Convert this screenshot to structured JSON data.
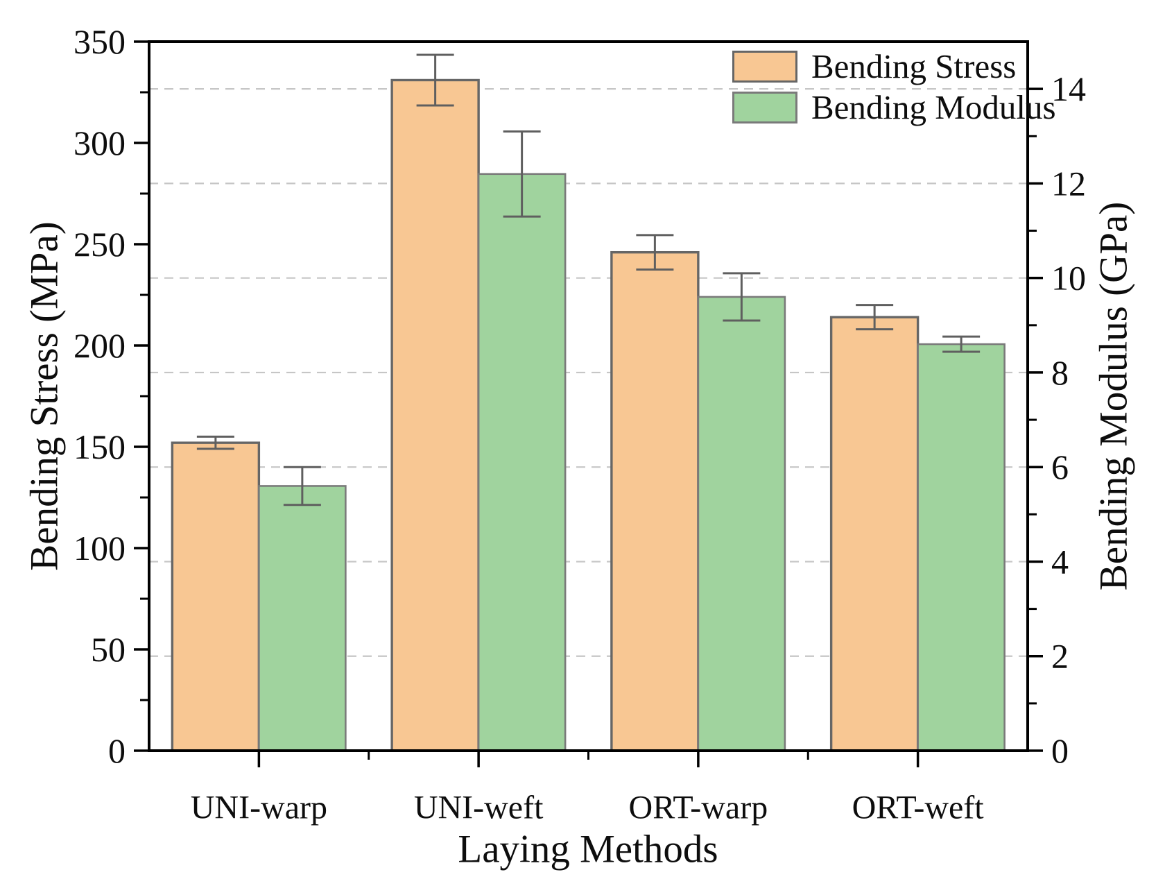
{
  "chart_data": {
    "type": "bar",
    "title": "",
    "categories": [
      "UNI-warp",
      "UNI-weft",
      "ORT-warp",
      "ORT-weft"
    ],
    "series": [
      {
        "name": "Bending Stress",
        "axis": "left",
        "unit": "MPa",
        "fill_color": "#F8C793",
        "edge_color": "#666666",
        "values": [
          152,
          331,
          246,
          214
        ],
        "errors": [
          3,
          12.5,
          8.5,
          6
        ]
      },
      {
        "name": "Bending Modulus",
        "axis": "right",
        "unit": "GPa",
        "fill_color": "#A0D39E",
        "edge_color": "#7a7a7a",
        "values": [
          5.6,
          12.2,
          9.6,
          8.6
        ],
        "errors": [
          0.4,
          0.9,
          0.5,
          0.16
        ]
      }
    ],
    "xlabel": "Laying Methods",
    "left_axis": {
      "label": "Bending Stress (MPa)",
      "min": 0,
      "max": 350,
      "major_step": 50,
      "minor_step": 25
    },
    "right_axis": {
      "label": "Bending Modulus (GPa)",
      "min": 0,
      "max": 15,
      "major_step": 2,
      "minor_step": 1
    },
    "grid": {
      "on": true,
      "orientation": "horizontal",
      "aligned_to": "right-axis-major",
      "style": "dashed",
      "color": "#c6c6c6"
    },
    "legend": {
      "position": "top-right-inside",
      "frame": false
    },
    "errorbar_color": "#5f5f5f"
  }
}
